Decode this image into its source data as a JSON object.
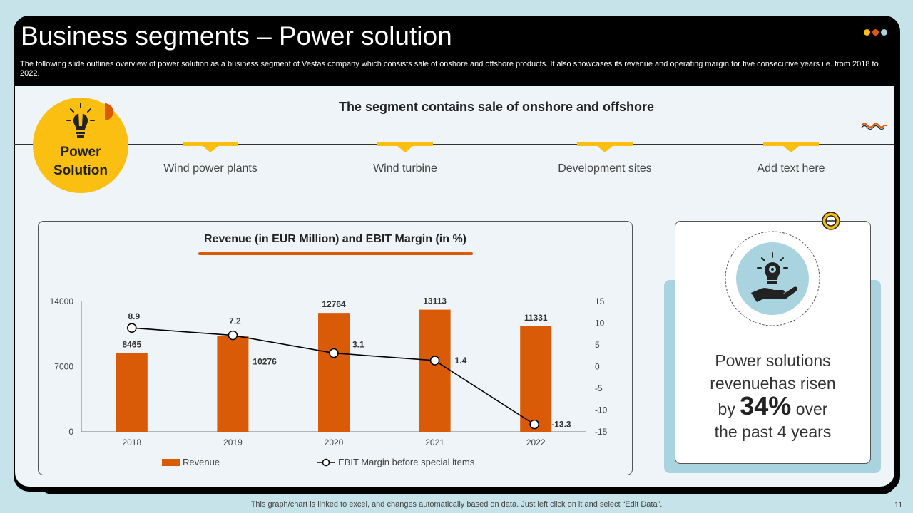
{
  "slide": {
    "title": "Business segments – Power solution",
    "subtitle": "The following slide outlines overview of power solution as a business segment of Vestas company which consists sale of onshore and offshore products. It also showcases its revenue and operating margin for five consecutive years i.e. from 2018 to 2022.",
    "dot_colors": [
      "#fbbf11",
      "#d95a07",
      "#a9d4df"
    ]
  },
  "segment": {
    "badge_line1": "Power",
    "badge_line2": "Solution",
    "heading": "The segment contains sale of onshore and offshore",
    "items": [
      "Wind power plants",
      "Wind turbine",
      "Development sites",
      "Add text here"
    ]
  },
  "chart_data": {
    "type": "bar",
    "title": "Revenue (in EUR Million) and EBIT Margin (in %)",
    "categories": [
      "2018",
      "2019",
      "2020",
      "2021",
      "2022"
    ],
    "series": [
      {
        "name": "Revenue",
        "type": "bar",
        "axis": "left",
        "values": [
          8465,
          10276,
          12764,
          13113,
          11331
        ],
        "color": "#d95a07"
      },
      {
        "name": "EBIT Margin before special items",
        "type": "line",
        "axis": "right",
        "values": [
          8.9,
          7.2,
          3.1,
          1.4,
          -13.3
        ],
        "color": "#000000"
      }
    ],
    "y_left": {
      "ticks": [
        "0",
        "7000",
        "14000"
      ],
      "ylim": [
        0,
        14000
      ]
    },
    "y_right": {
      "ticks": [
        "15",
        "10",
        "5",
        "0",
        "-5",
        "-10",
        "-15"
      ],
      "ylim": [
        -15,
        15
      ]
    },
    "legend_position": "bottom"
  },
  "info": {
    "line1": "Power solutions",
    "line2": "revenuehas risen",
    "line3_pre": "by",
    "line3_big": "34%",
    "line3_post": "over",
    "line4": "the past 4 years"
  },
  "footer": {
    "note": "This graph/chart is linked to excel,  and changes automatically based on data. Just left click on it and select “Edit Data”.",
    "page_number": "11"
  }
}
